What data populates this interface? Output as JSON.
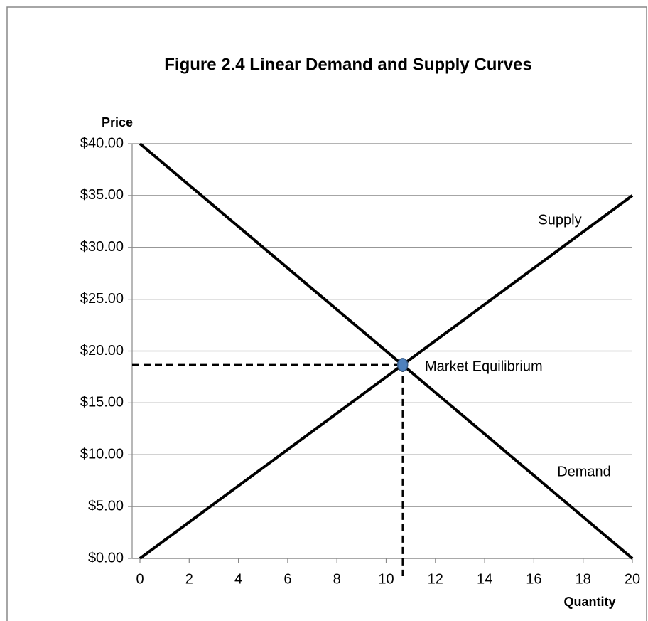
{
  "chart_data": {
    "type": "line",
    "title": "Figure 2.4  Linear Demand and Supply Curves",
    "y_label": "Price",
    "x_label": "Quantity",
    "xlim": [
      0,
      20
    ],
    "ylim": [
      0,
      40
    ],
    "xticks": [
      0,
      2,
      4,
      6,
      8,
      10,
      12,
      14,
      16,
      18,
      20
    ],
    "yticks": [
      {
        "value": 0,
        "label": "$0.00"
      },
      {
        "value": 5,
        "label": "$5.00"
      },
      {
        "value": 10,
        "label": "$10.00"
      },
      {
        "value": 15,
        "label": "$15.00"
      },
      {
        "value": 20,
        "label": "$20.00"
      },
      {
        "value": 25,
        "label": "$25.00"
      },
      {
        "value": 30,
        "label": "$30.00"
      },
      {
        "value": 35,
        "label": "$35.00"
      },
      {
        "value": 40,
        "label": "$40.00"
      }
    ],
    "grid": true,
    "series": [
      {
        "name": "Supply",
        "color": "#000000",
        "x": [
          0,
          20
        ],
        "values": [
          0,
          35
        ]
      },
      {
        "name": "Demand",
        "color": "#000000",
        "x": [
          0,
          20
        ],
        "values": [
          40,
          0
        ]
      }
    ],
    "equilibrium": {
      "label": "Market Equilibrium",
      "x": 10.67,
      "y": 18.67,
      "color": "#4f81bd"
    }
  }
}
